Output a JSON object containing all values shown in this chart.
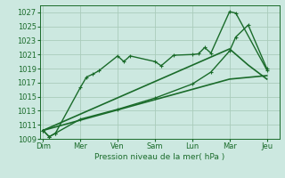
{
  "bg_color": "#cce8e0",
  "grid_color": "#aaccbb",
  "line_color": "#1a6b2a",
  "xlabel": "Pression niveau de la mer( hPa )",
  "ylim": [
    1009,
    1028
  ],
  "yticks": [
    1009,
    1011,
    1013,
    1015,
    1017,
    1019,
    1021,
    1023,
    1025,
    1027
  ],
  "xtick_labels": [
    "Dim",
    "Mer",
    "Ven",
    "Sam",
    "Lun",
    "Mar",
    "Jeu"
  ],
  "xtick_positions": [
    0,
    12,
    24,
    36,
    48,
    60,
    72
  ],
  "xlim": [
    -1,
    76
  ],
  "series": [
    {
      "x": [
        0,
        2,
        4,
        12,
        14,
        16,
        18,
        24,
        26,
        28,
        36,
        38,
        42,
        48,
        50,
        52,
        54,
        60,
        62,
        72
      ],
      "y": [
        1010.2,
        1009.3,
        1009.8,
        1016.3,
        1017.8,
        1018.2,
        1018.7,
        1020.8,
        1020.0,
        1020.8,
        1020.0,
        1019.4,
        1020.9,
        1021.0,
        1021.1,
        1022.0,
        1021.2,
        1027.1,
        1026.9,
        1018.8
      ],
      "markersize": 2.5,
      "linewidth": 1.0,
      "marker": "+"
    },
    {
      "x": [
        0,
        2,
        4,
        12,
        24,
        36,
        48,
        54,
        60,
        62,
        66,
        72
      ],
      "y": [
        1010.2,
        1009.3,
        1009.8,
        1011.8,
        1013.2,
        1014.8,
        1016.8,
        1018.5,
        1021.5,
        1023.5,
        1025.2,
        1019.0
      ],
      "markersize": 2.5,
      "linewidth": 1.0,
      "marker": "+"
    },
    {
      "x": [
        0,
        60,
        66,
        72
      ],
      "y": [
        1010.2,
        1021.8,
        1019.5,
        1017.5
      ],
      "markersize": 0,
      "linewidth": 1.2,
      "marker": null
    },
    {
      "x": [
        0,
        60,
        72
      ],
      "y": [
        1010.2,
        1017.5,
        1018.0
      ],
      "markersize": 0,
      "linewidth": 1.2,
      "marker": null
    }
  ]
}
